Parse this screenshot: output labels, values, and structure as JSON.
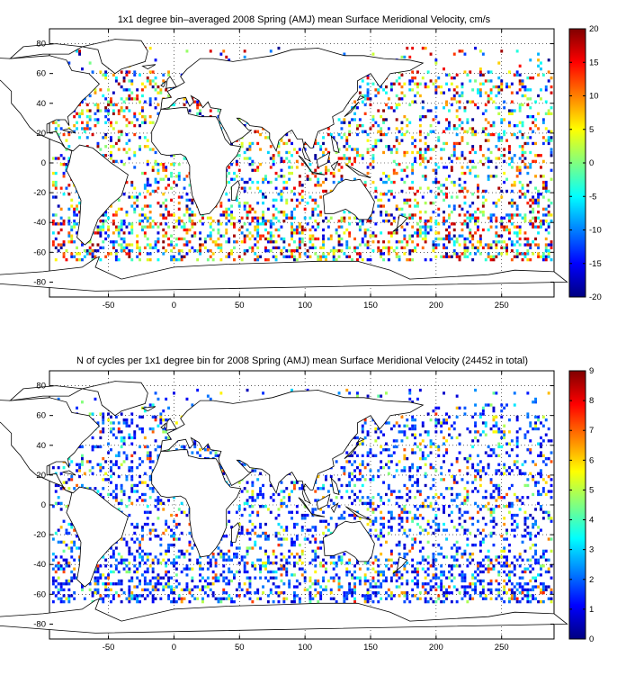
{
  "figure": {
    "panels": [
      {
        "id": "velocity",
        "title": "1x1 degree bin–averaged 2008 Spring (AMJ) mean Surface Meridional Velocity, cm/s",
        "x_ticks": [
          "-50",
          "0",
          "50",
          "100",
          "150",
          "200",
          "250"
        ],
        "y_ticks": [
          "80",
          "60",
          "40",
          "20",
          "0",
          "-20",
          "-40",
          "-60",
          "-80"
        ],
        "colorbar_ticks": [
          "20",
          "15",
          "10",
          "5",
          "0",
          "-5",
          "-10",
          "-15",
          "-20"
        ],
        "colormap": "jet",
        "clim": [
          -20,
          20
        ]
      },
      {
        "id": "counts",
        "title": "N of cycles per 1x1 degree bin for 2008 Spring (AMJ) mean Surface Meridional Velocity (24452 in total)",
        "x_ticks": [
          "-50",
          "0",
          "50",
          "100",
          "150",
          "200",
          "250"
        ],
        "y_ticks": [
          "80",
          "60",
          "40",
          "20",
          "0",
          "-20",
          "-40",
          "-60",
          "-80"
        ],
        "colorbar_ticks": [
          "9",
          "8",
          "7",
          "6",
          "5",
          "4",
          "3",
          "2",
          "1",
          "0"
        ],
        "colormap": "jet",
        "clim": [
          0,
          9
        ]
      }
    ]
  },
  "chart_data": [
    {
      "type": "heatmap",
      "title": "1x1 degree bin–averaged 2008 Spring (AMJ) mean Surface Meridional Velocity, cm/s",
      "xlim": [
        -95,
        290
      ],
      "ylim": [
        -90,
        90
      ],
      "grid": true,
      "colorbar_range": [
        -20,
        20
      ],
      "colorbar_ticks": [
        -20,
        -15,
        -10,
        -5,
        0,
        5,
        10,
        15,
        20
      ],
      "x_ticks": [
        -50,
        0,
        50,
        100,
        150,
        200,
        250
      ],
      "y_ticks": [
        -80,
        -60,
        -40,
        -20,
        0,
        20,
        40,
        60,
        80
      ]
    },
    {
      "type": "heatmap",
      "title": "N of cycles per 1x1 degree bin for 2008 Spring (AMJ) mean Surface Meridional Velocity (24452 in total)",
      "xlim": [
        -95,
        290
      ],
      "ylim": [
        -90,
        90
      ],
      "grid": true,
      "colorbar_range": [
        0,
        9
      ],
      "colorbar_ticks": [
        0,
        1,
        2,
        3,
        4,
        5,
        6,
        7,
        8,
        9
      ],
      "x_ticks": [
        -50,
        0,
        50,
        100,
        150,
        200,
        250
      ],
      "y_ticks": [
        -80,
        -60,
        -40,
        -20,
        0,
        20,
        40,
        60,
        80
      ]
    }
  ]
}
